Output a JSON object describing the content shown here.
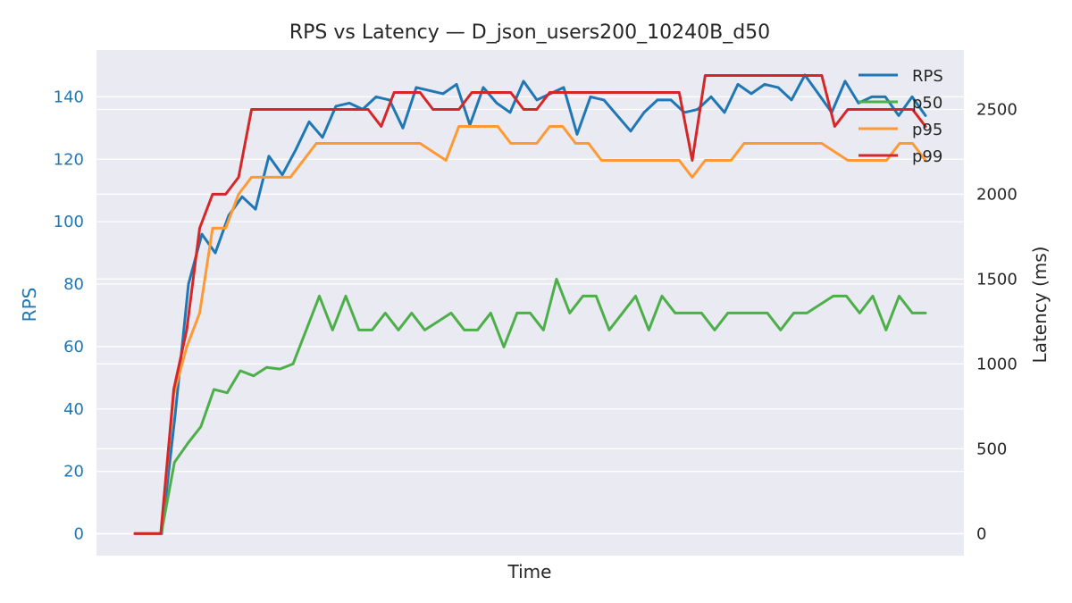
{
  "chart_data": {
    "type": "line",
    "title": "RPS vs Latency — D_json_users200_10240B_d50",
    "xlabel": "Time",
    "ylabel_left": "RPS",
    "ylabel_right": "Latency (ms)",
    "ylim_left": [
      -7,
      155
    ],
    "ylim_right": [
      -130,
      2850
    ],
    "yticks_left": [
      0,
      20,
      40,
      60,
      80,
      100,
      120,
      140
    ],
    "yticks_right": [
      0,
      500,
      1000,
      1500,
      2000,
      2500
    ],
    "grid": true,
    "legend_position": "top-right",
    "colors": {
      "RPS": "#1f77b4",
      "p50": "#4daf4a",
      "p95": "#ff9933",
      "p99": "#d62728",
      "background": "#eaeaf2",
      "grid": "#ffffff",
      "left_axis": "#1f77b4"
    },
    "series": [
      {
        "name": "RPS",
        "axis": "left",
        "values": [
          0,
          0,
          0,
          38,
          80,
          96,
          90,
          102,
          108,
          104,
          121,
          115,
          123,
          132,
          127,
          137,
          138,
          136,
          140,
          139,
          130,
          143,
          142,
          141,
          144,
          131,
          143,
          138,
          135,
          145,
          139,
          141,
          143,
          128,
          140,
          139,
          134,
          129,
          135,
          139,
          139,
          135,
          136,
          140,
          135,
          144,
          141,
          144,
          143,
          139,
          147,
          141,
          135,
          145,
          138,
          140,
          140,
          134,
          140,
          134
        ]
      },
      {
        "name": "p50",
        "axis": "right",
        "values": [
          0,
          0,
          0,
          420,
          530,
          630,
          850,
          830,
          960,
          930,
          980,
          970,
          1000,
          1200,
          1400,
          1200,
          1400,
          1200,
          1200,
          1300,
          1200,
          1300,
          1200,
          1250,
          1300,
          1200,
          1200,
          1300,
          1100,
          1300,
          1300,
          1200,
          1500,
          1300,
          1400,
          1400,
          1200,
          1300,
          1400,
          1200,
          1400,
          1300,
          1300,
          1300,
          1200,
          1300,
          1300,
          1300,
          1300,
          1200,
          1300,
          1300,
          1350,
          1400,
          1400,
          1300,
          1400,
          1200,
          1400,
          1300,
          1300
        ]
      },
      {
        "name": "p95",
        "axis": "right",
        "values": [
          0,
          0,
          0,
          820,
          1100,
          1300,
          1800,
          1800,
          2000,
          2100,
          2100,
          2100,
          2100,
          2200,
          2300,
          2300,
          2300,
          2300,
          2300,
          2300,
          2300,
          2300,
          2300,
          2250,
          2200,
          2400,
          2400,
          2400,
          2400,
          2300,
          2300,
          2300,
          2400,
          2400,
          2300,
          2300,
          2200,
          2200,
          2200,
          2200,
          2200,
          2200,
          2200,
          2100,
          2200,
          2200,
          2200,
          2300,
          2300,
          2300,
          2300,
          2300,
          2300,
          2300,
          2250,
          2200,
          2200,
          2200,
          2200,
          2300,
          2300,
          2200
        ]
      },
      {
        "name": "p99",
        "axis": "right",
        "values": [
          0,
          0,
          0,
          850,
          1200,
          1800,
          2000,
          2000,
          2100,
          2500,
          2500,
          2500,
          2500,
          2500,
          2500,
          2500,
          2500,
          2500,
          2500,
          2400,
          2600,
          2600,
          2600,
          2500,
          2500,
          2500,
          2600,
          2600,
          2600,
          2600,
          2500,
          2500,
          2600,
          2600,
          2600,
          2600,
          2600,
          2600,
          2600,
          2600,
          2600,
          2600,
          2600,
          2200,
          2700,
          2700,
          2700,
          2700,
          2700,
          2700,
          2700,
          2700,
          2700,
          2700,
          2400,
          2500,
          2500,
          2500,
          2500,
          2500,
          2500,
          2400
        ]
      }
    ]
  }
}
